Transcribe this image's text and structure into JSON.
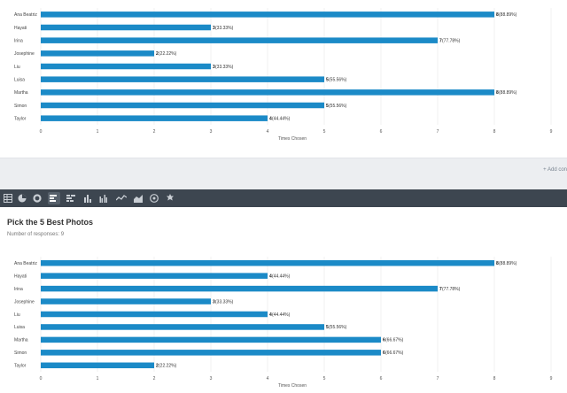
{
  "question_title": "Pick the 5 Best Photos",
  "responses_label": "Number of responses: 9",
  "add_link_label": "+ Add con",
  "toolbar_icons": [
    "table-icon",
    "pie-chart-icon",
    "donut-chart-icon",
    "horizontal-bar-chart-icon",
    "stacked-bar-icon",
    "vertical-bar-chart-icon",
    "grouped-bar-icon",
    "line-chart-icon",
    "area-chart-icon",
    "radar-chart-icon",
    "settings-icon"
  ],
  "colors": {
    "bar": "#1b8ac7",
    "grid": "#e6e6e6",
    "toolbar_bg": "#3d4650",
    "toolbar_icon": "#c9ced4",
    "band_bg": "#eceef1"
  },
  "chart_data": [
    {
      "type": "bar",
      "orientation": "horizontal",
      "categories": [
        "Ana Beatriz",
        "Hayati",
        "Irina",
        "Josephine",
        "Liu",
        "Luisa",
        "Martha",
        "Simon",
        "Taylor"
      ],
      "values": [
        8,
        3,
        7,
        2,
        3,
        5,
        8,
        5,
        4
      ],
      "data_labels": [
        "(88.89%)",
        "(33.33%)",
        "(77.78%)",
        "(22.22%)",
        "(33.33%)",
        "(55.56%)",
        "(88.89%)",
        "(55.56%)",
        "(44.44%)"
      ],
      "xlabel": "Times Chosen",
      "xlim": [
        0,
        9
      ],
      "xticks": [
        "0",
        "1",
        "2",
        "3",
        "4",
        "5",
        "6",
        "7",
        "8",
        "9"
      ],
      "grid": true
    },
    {
      "type": "bar",
      "orientation": "horizontal",
      "title": "Pick the 5 Best Photos",
      "categories": [
        "Ana Beatriz",
        "Hayati",
        "Irina",
        "Josephine",
        "Liu",
        "Luisa",
        "Martha",
        "Simon",
        "Taylor"
      ],
      "values": [
        8,
        4,
        7,
        3,
        4,
        5,
        6,
        6,
        2
      ],
      "data_labels": [
        "(88.89%)",
        "(44.44%)",
        "(77.78%)",
        "(33.33%)",
        "(44.44%)",
        "(55.56%)",
        "(66.67%)",
        "(66.67%)",
        "(22.22%)"
      ],
      "xlabel": "Times Chosen",
      "xlim": [
        0,
        9
      ],
      "xticks": [
        "0",
        "1",
        "2",
        "3",
        "4",
        "5",
        "6",
        "7",
        "8",
        "9"
      ],
      "grid": true
    }
  ]
}
